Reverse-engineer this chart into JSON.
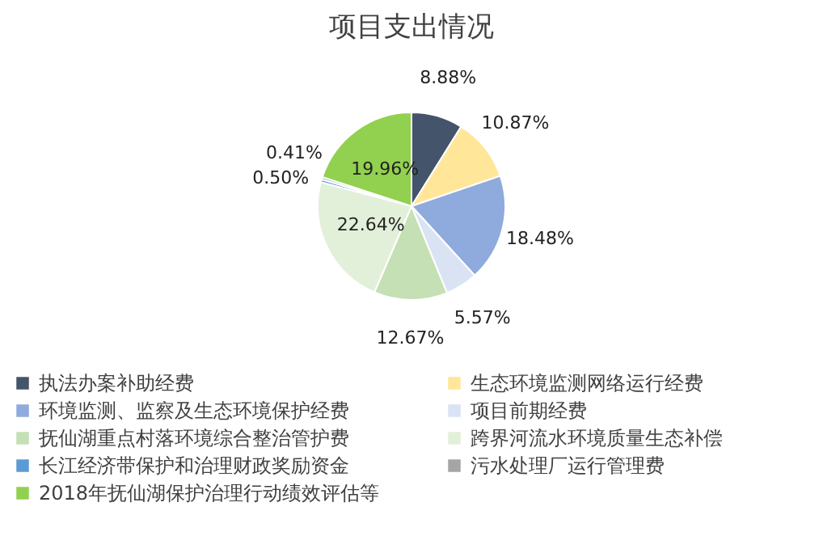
{
  "chart_data": {
    "type": "pie",
    "title": "项目支出情况",
    "categories": [
      "执法办案补助经费",
      "生态环境监测网络运行经费",
      "环境监测、监察及生态环境保护经费",
      "项目前期经费",
      "抚仙湖重点村落环境综合整治管护费",
      "跨界河流水环境质量生态补偿",
      "长江经济带保护和治理财政奖励资金",
      "污水处理厂运行管理费",
      "2018年抚仙湖保护治理行动绩效评估等"
    ],
    "values": [
      8.88,
      10.87,
      18.48,
      5.57,
      12.67,
      22.64,
      0.5,
      0.41,
      19.96
    ],
    "colors": [
      "#44546a",
      "#ffe699",
      "#8faadc",
      "#dae3f3",
      "#c5e0b4",
      "#e2f0d9",
      "#5b9bd5",
      "#a5a5a5",
      "#92d050"
    ],
    "value_labels": [
      "8.88%",
      "10.87%",
      "18.48%",
      "5.57%",
      "12.67%",
      "22.64%",
      "0.50%",
      "0.41%",
      "19.96%"
    ],
    "legend": "bottom"
  }
}
